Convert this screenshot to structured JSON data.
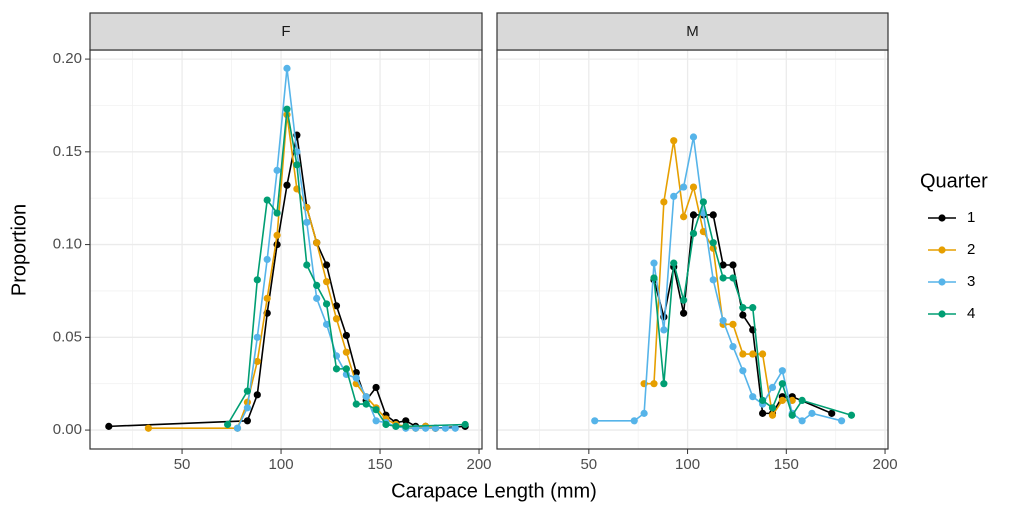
{
  "chart_data": {
    "type": "line",
    "xlabel": "Carapace Length (mm)",
    "ylabel": "Proportion",
    "legend_title": "Quarter",
    "legend_position": "right",
    "xlim": [
      3.5,
      201.5
    ],
    "ylim": [
      -0.0102,
      0.2049
    ],
    "xticks": [
      50,
      100,
      150,
      200
    ],
    "yticks": [
      {
        "value": 0,
        "label": "0.00"
      },
      {
        "value": 0.05,
        "label": "0.05"
      },
      {
        "value": 0.1,
        "label": "0.10"
      },
      {
        "value": 0.15,
        "label": "0.15"
      },
      {
        "value": 0.2,
        "label": "0.20"
      }
    ],
    "grid": true,
    "legend": [
      {
        "name": "1",
        "color": "#000000"
      },
      {
        "name": "2",
        "color": "#E69F00"
      },
      {
        "name": "3",
        "color": "#56B4E9"
      },
      {
        "name": "4",
        "color": "#009E73"
      }
    ],
    "facets": [
      {
        "title": "F",
        "series": [
          {
            "x": [
              13,
              83,
              88,
              93,
              98,
              103,
              108,
              113,
              118,
              123,
              128,
              133,
              138,
              143,
              148,
              153,
              158,
              163,
              168,
              173,
              178,
              193
            ],
            "values": [
              0.002,
              0.005,
              0.019,
              0.063,
              0.1,
              0.132,
              0.159,
              0.12,
              0.101,
              0.089,
              0.067,
              0.051,
              0.031,
              0.016,
              0.023,
              0.008,
              0.004,
              0.005,
              0.002,
              0.002,
              0.001,
              0.002
            ]
          },
          {
            "x": [
              33,
              78,
              83,
              88,
              93,
              98,
              103,
              108,
              113,
              118,
              123,
              128,
              133,
              138,
              143,
              148,
              153,
              158,
              163,
              168,
              173,
              178
            ],
            "values": [
              0.001,
              0.001,
              0.015,
              0.037,
              0.071,
              0.105,
              0.17,
              0.13,
              0.12,
              0.101,
              0.08,
              0.06,
              0.042,
              0.025,
              0.018,
              0.012,
              0.006,
              0.003,
              0.002,
              0.001,
              0.002,
              0.001
            ]
          },
          {
            "x": [
              78,
              83,
              88,
              93,
              98,
              103,
              108,
              113,
              118,
              123,
              128,
              133,
              138,
              143,
              148,
              153,
              158,
              163,
              168,
              173,
              178,
              183,
              188
            ],
            "values": [
              0.001,
              0.012,
              0.05,
              0.092,
              0.14,
              0.195,
              0.15,
              0.112,
              0.071,
              0.057,
              0.04,
              0.03,
              0.028,
              0.018,
              0.005,
              0.004,
              0.002,
              0.001,
              0.001,
              0.001,
              0.001,
              0.001,
              0.001
            ]
          },
          {
            "x": [
              73,
              83,
              88,
              93,
              98,
              103,
              108,
              113,
              118,
              123,
              128,
              133,
              138,
              143,
              148,
              153,
              158,
              163,
              193
            ],
            "values": [
              0.003,
              0.021,
              0.081,
              0.124,
              0.117,
              0.173,
              0.143,
              0.089,
              0.078,
              0.068,
              0.033,
              0.033,
              0.014,
              0.014,
              0.011,
              0.003,
              0.002,
              0.002,
              0.003
            ]
          }
        ]
      },
      {
        "title": "M",
        "series": [
          {
            "x": [
              83,
              88,
              93,
              98,
              103,
              108,
              113,
              118,
              123,
              128,
              133,
              138,
              143,
              148,
              153,
              173
            ],
            "values": [
              0.081,
              0.061,
              0.088,
              0.063,
              0.116,
              0.116,
              0.116,
              0.089,
              0.089,
              0.062,
              0.054,
              0.009,
              0.009,
              0.018,
              0.018,
              0.009
            ]
          },
          {
            "x": [
              78,
              83,
              88,
              93,
              98,
              103,
              108,
              113,
              118,
              123,
              128,
              133,
              138,
              143,
              148,
              153
            ],
            "values": [
              0.025,
              0.025,
              0.123,
              0.156,
              0.115,
              0.131,
              0.107,
              0.098,
              0.057,
              0.057,
              0.041,
              0.041,
              0.041,
              0.008,
              0.016,
              0.016
            ]
          },
          {
            "x": [
              53,
              73,
              78,
              83,
              88,
              93,
              98,
              103,
              108,
              113,
              118,
              123,
              128,
              133,
              138,
              143,
              148,
              153,
              158,
              163,
              178
            ],
            "values": [
              0.005,
              0.005,
              0.009,
              0.09,
              0.054,
              0.126,
              0.131,
              0.158,
              0.117,
              0.081,
              0.059,
              0.045,
              0.032,
              0.018,
              0.014,
              0.023,
              0.032,
              0.009,
              0.005,
              0.009,
              0.005
            ]
          },
          {
            "x": [
              83,
              88,
              93,
              98,
              103,
              108,
              113,
              118,
              123,
              128,
              133,
              138,
              143,
              148,
              153,
              158,
              183
            ],
            "values": [
              0.082,
              0.025,
              0.09,
              0.07,
              0.106,
              0.123,
              0.101,
              0.082,
              0.082,
              0.066,
              0.066,
              0.016,
              0.012,
              0.025,
              0.008,
              0.016,
              0.008
            ]
          }
        ]
      }
    ]
  }
}
